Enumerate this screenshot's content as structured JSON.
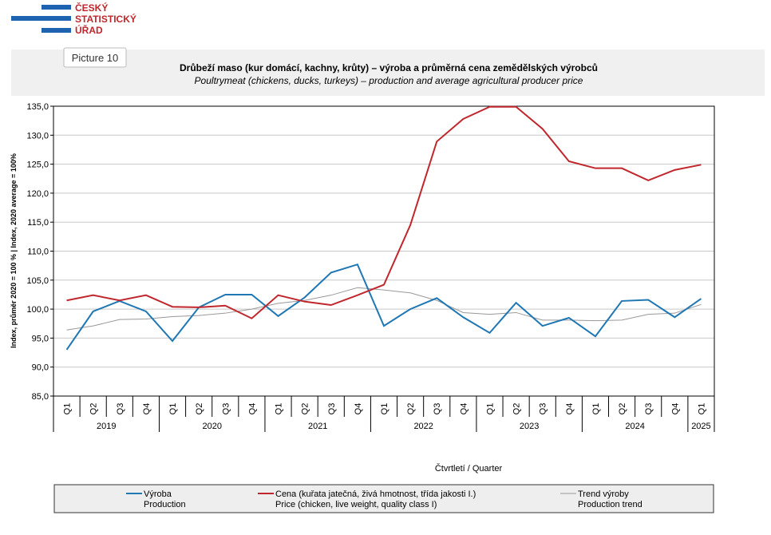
{
  "logo": [
    "ČESKÝ",
    "STATISTICKÝ",
    "ÚŘAD"
  ],
  "picture_label": "Picture 10",
  "chart_data": {
    "type": "line",
    "title": "Drůbeží maso (kur domácí, kachny, krůty) – výroba a průměrná cena zemědělských výrobců",
    "subtitle": "Poultrymeat (chickens, ducks, turkeys) – production and average agricultural producer price",
    "x_label": "Čtvrtletí / Quarter",
    "y_label": "Index, průměr 2020 = 100 % | Index, 2020 average = 100%",
    "categories": [
      "Q1",
      "Q2",
      "Q3",
      "Q4",
      "Q1",
      "Q2",
      "Q3",
      "Q4",
      "Q1",
      "Q2",
      "Q3",
      "Q4",
      "Q1",
      "Q2",
      "Q3",
      "Q4",
      "Q1",
      "Q2",
      "Q3",
      "Q4",
      "Q1",
      "Q2",
      "Q3",
      "Q4",
      "Q1"
    ],
    "years": [
      "2019",
      "2020",
      "2021",
      "2022",
      "2023",
      "2024",
      "2025"
    ],
    "ylim": [
      85,
      135
    ],
    "yticks": [
      {
        "value": 85,
        "label": "85,0"
      },
      {
        "value": 90,
        "label": "90,0"
      },
      {
        "value": 95,
        "label": "95,0"
      },
      {
        "value": 100,
        "label": "100,0"
      },
      {
        "value": 105,
        "label": "105,0"
      },
      {
        "value": 110,
        "label": "110,0"
      },
      {
        "value": 115,
        "label": "115,0"
      },
      {
        "value": 120,
        "label": "120,0"
      },
      {
        "value": 125,
        "label": "125,0"
      },
      {
        "value": 130,
        "label": "130,0"
      },
      {
        "value": 135,
        "label": "135,0"
      }
    ],
    "grid": true,
    "legend": "bottom",
    "series": [
      {
        "name": "Výroba",
        "name_en": "Production",
        "color": "#1f77b4",
        "width": 2,
        "values": [
          93.0,
          99.6,
          101.4,
          99.6,
          94.5,
          100.3,
          102.5,
          102.5,
          98.8,
          102.0,
          106.3,
          107.7,
          97.1,
          100.0,
          101.9,
          98.6,
          95.9,
          101.1,
          97.1,
          98.5,
          95.3,
          101.4,
          101.6,
          98.6,
          101.8
        ]
      },
      {
        "name": "Cena (kuřata jatečná, živá hmotnost, třída jakosti I.)",
        "name_en": "Price (chicken, live weight, quality class I)",
        "color": "#c0272d",
        "width": 2,
        "values": [
          101.5,
          102.4,
          101.5,
          102.4,
          100.4,
          100.3,
          100.6,
          98.4,
          102.4,
          101.3,
          100.7,
          102.4,
          104.2,
          114.5,
          128.9,
          132.8,
          134.9,
          134.9,
          131.1,
          125.5,
          124.3,
          124.3,
          122.2,
          124.0,
          124.9
        ]
      },
      {
        "name": "Trend výroby",
        "name_en": "Production trend",
        "color": "#999999",
        "width": 1,
        "values": [
          96.4,
          97.1,
          98.2,
          98.3,
          98.7,
          98.9,
          99.3,
          100.0,
          101.0,
          101.5,
          102.4,
          103.7,
          103.3,
          102.8,
          101.5,
          99.4,
          99.1,
          99.4,
          98.1,
          98.1,
          98.0,
          98.1,
          99.1,
          99.3,
          100.8
        ]
      }
    ]
  }
}
